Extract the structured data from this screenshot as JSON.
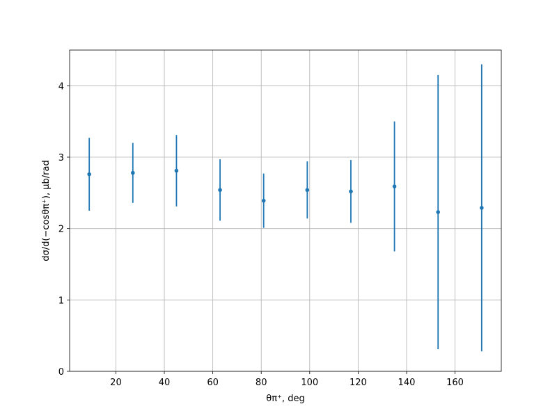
{
  "chart_data": {
    "type": "errorbar",
    "xlabel": "θπ⁺, deg",
    "ylabel": "dσ/d(−cosθπ⁺), μb/rad",
    "x": [
      9,
      27,
      45,
      63,
      81,
      99,
      117,
      135,
      153,
      171
    ],
    "series": [
      {
        "color": "#1f77b4",
        "values": [
          2.76,
          2.78,
          2.81,
          2.54,
          2.39,
          2.54,
          2.52,
          2.59,
          2.23,
          2.29
        ],
        "errors": [
          0.51,
          0.42,
          0.5,
          0.43,
          0.38,
          0.4,
          0.44,
          0.91,
          1.92,
          2.01
        ]
      }
    ],
    "xlim": [
      0.9,
      179.1
    ],
    "ylim": [
      0,
      4.5
    ],
    "xticks": [
      20,
      40,
      60,
      80,
      100,
      120,
      140,
      160
    ],
    "yticks": [
      0,
      1,
      2,
      3,
      4
    ],
    "grid": true
  }
}
